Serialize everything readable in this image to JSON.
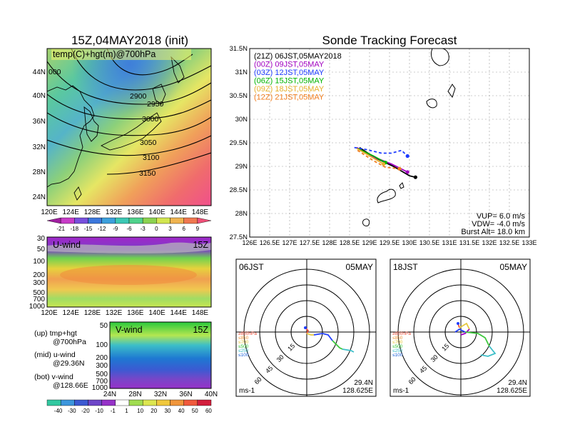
{
  "map_panel": {
    "title": "15Z,04MAY2018 (init)",
    "overlay": "temp(C)+hgt(m)@700hPa",
    "lat_ticks": [
      "44N",
      "40N",
      "36N",
      "32N",
      "28N",
      "24N"
    ],
    "lon_ticks": [
      "120E",
      "124E",
      "128E",
      "132E",
      "136E",
      "140E",
      "144E",
      "148E"
    ],
    "contours": [
      "2900",
      "2950",
      "3000",
      "3050",
      "3100",
      "3150"
    ],
    "contour_partial": "000",
    "colorbar_labels": [
      "-21",
      "-18",
      "-15",
      "-12",
      "-9",
      "-6",
      "-3",
      "0",
      "3",
      "6",
      "9"
    ]
  },
  "u_panel": {
    "title": "U-wind",
    "time": "15Z",
    "p_ticks": [
      "30",
      "50",
      "100",
      "200",
      "300",
      "500",
      "700",
      "1000"
    ],
    "lon_ticks": [
      "120E",
      "124E",
      "128E",
      "132E",
      "136E",
      "140E",
      "144E",
      "148E"
    ]
  },
  "v_panel": {
    "title": "V-wind",
    "time": "15Z",
    "p_ticks": [
      "50",
      "100",
      "200",
      "300",
      "500",
      "700",
      "1000"
    ],
    "lat_ticks": [
      "24N",
      "28N",
      "32N",
      "36N",
      "40N"
    ]
  },
  "legend_text": [
    {
      "line1": "(up) tmp+hgt",
      "line2": "@700hPa"
    },
    {
      "line1": "(mid) u-wind",
      "line2": "@29.36N"
    },
    {
      "line1": "(bot) v-wind",
      "line2": "@128.66E"
    }
  ],
  "wind_colorbar_labels": [
    "-40",
    "-30",
    "-20",
    "-10",
    "-1",
    "1",
    "10",
    "20",
    "30",
    "40",
    "50",
    "60"
  ],
  "track_panel": {
    "title": "Sonde Tracking Forecast",
    "lat_ticks": [
      "31.5N",
      "31N",
      "30.5N",
      "30N",
      "29.5N",
      "29N",
      "28.5N",
      "28N",
      "27.5N"
    ],
    "lon_ticks": [
      "126E",
      "126.5E",
      "127E",
      "127.5E",
      "128E",
      "128.5E",
      "129E",
      "129.5E",
      "130E",
      "130.5E",
      "131E",
      "131.5E",
      "132E",
      "132.5E",
      "133E"
    ],
    "legend": [
      {
        "label": "(21Z) 06JST,05MAY2018",
        "color": "#000000"
      },
      {
        "label": "(00Z) 09JST,05MAY",
        "color": "#a000c0"
      },
      {
        "label": "(03Z) 12JST,05MAY",
        "color": "#1e3cff"
      },
      {
        "label": "(06Z) 15JST,05MAY",
        "color": "#00b400"
      },
      {
        "label": "(09Z) 18JST,05MAY",
        "color": "#e6af2d"
      },
      {
        "label": "(12Z) 21JST,05MAY",
        "color": "#f07d1e"
      }
    ],
    "vup": "VUP= 6.0 m/s",
    "vdw": "VDW= -4.0 m/s",
    "burst": "Burst Alt= 18.0 km"
  },
  "polar_left": {
    "time": "06JST",
    "date": "05MAY",
    "ring_labels": [
      "15",
      "30",
      "45",
      "60"
    ],
    "levels": [
      "≥850hPa",
      "≤850",
      "≤700",
      "≤500",
      "≤250",
      "≤100"
    ],
    "unit": "ms-1",
    "lat": "29.4N",
    "lon": "128.625E"
  },
  "polar_right": {
    "time": "18JST",
    "date": "05MAY",
    "ring_labels": [
      "15",
      "30",
      "45",
      "60"
    ],
    "levels": [
      "≥850hPa",
      "≤850",
      "≤700",
      "≤500",
      "≤250",
      "≤100"
    ],
    "unit": "ms-1",
    "lat": "29.4N",
    "lon": "128.625E"
  },
  "chart_data": [
    {
      "type": "heatmap",
      "title": "15Z,04MAY2018 (init)",
      "subtitle": "temp(C)+hgt(m)@700hPa",
      "x_range": [
        120,
        150
      ],
      "y_range": [
        22,
        48
      ],
      "color_levels": [
        -21,
        -18,
        -15,
        -12,
        -9,
        -6,
        -3,
        0,
        3,
        6,
        9
      ],
      "contour_levels_m": [
        2900,
        2950,
        3000,
        3050,
        3100,
        3150
      ]
    },
    {
      "type": "heatmap",
      "title": "U-wind",
      "x_range": [
        120,
        150
      ],
      "y_ticks_hPa": [
        30,
        50,
        100,
        200,
        300,
        500,
        700,
        1000
      ]
    },
    {
      "type": "heatmap",
      "title": "V-wind",
      "x_range": [
        24,
        40
      ],
      "y_ticks_hPa": [
        50,
        100,
        200,
        300,
        500,
        700,
        1000
      ],
      "color_levels": [
        -40,
        -30,
        -20,
        -10,
        -1,
        1,
        10,
        20,
        30,
        40,
        50,
        60
      ]
    },
    {
      "type": "line",
      "title": "Sonde Tracking Forecast",
      "x_range": [
        126,
        133
      ],
      "y_range": [
        27.5,
        31.5
      ],
      "series": [
        {
          "name": "(21Z) 06JST,05MAY2018",
          "color": "#000000",
          "points": [
            [
              128.75,
              29.4
            ],
            [
              129.1,
              29.2
            ],
            [
              129.6,
              29.0
            ],
            [
              130.0,
              28.8
            ],
            [
              130.15,
              28.77
            ]
          ]
        },
        {
          "name": "(00Z) 09JST,05MAY",
          "color": "#a000c0",
          "points": [
            [
              128.68,
              29.4
            ],
            [
              129.1,
              29.2
            ],
            [
              129.55,
              29.05
            ],
            [
              129.95,
              28.88
            ]
          ]
        },
        {
          "name": "(03Z) 12JST,05MAY",
          "color": "#1e3cff",
          "points": [
            [
              128.62,
              29.4
            ],
            [
              128.9,
              29.36
            ],
            [
              129.3,
              29.28
            ],
            [
              129.55,
              29.28
            ],
            [
              129.8,
              29.34
            ],
            [
              129.95,
              29.22
            ]
          ]
        },
        {
          "name": "(06Z) 15JST,05MAY",
          "color": "#00b400",
          "points": [
            [
              128.7,
              29.38
            ],
            [
              129.1,
              29.22
            ],
            [
              129.4,
              29.08
            ]
          ]
        },
        {
          "name": "(09Z) 18JST,05MAY",
          "color": "#e6af2d",
          "points": [
            [
              128.68,
              29.38
            ],
            [
              129.05,
              29.2
            ],
            [
              129.35,
              29.05
            ]
          ]
        },
        {
          "name": "(12Z) 21JST,05MAY",
          "color": "#f07d1e",
          "points": [
            [
              128.7,
              29.34
            ],
            [
              129.1,
              29.12
            ],
            [
              129.4,
              28.98
            ],
            [
              129.75,
              28.95
            ]
          ]
        }
      ]
    }
  ]
}
